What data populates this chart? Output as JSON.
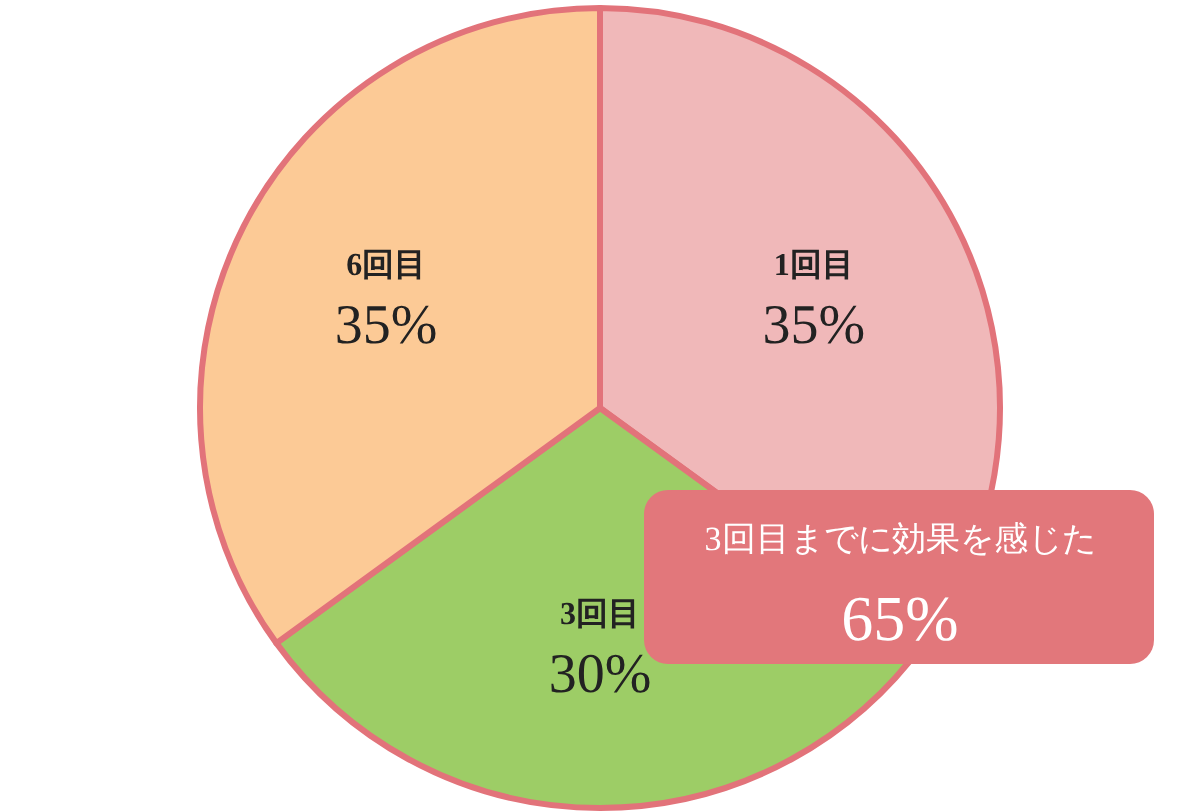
{
  "chart_data": {
    "type": "pie",
    "categories": [
      "1回目",
      "3回目",
      "6回目"
    ],
    "values": [
      35,
      30,
      35
    ],
    "colors": [
      "#f0b8b9",
      "#9dcd66",
      "#fcca96"
    ],
    "value_labels": [
      "35%",
      "30%",
      "35%"
    ],
    "annotations": [
      "3回目までに効果を感じた",
      "65%"
    ]
  }
}
